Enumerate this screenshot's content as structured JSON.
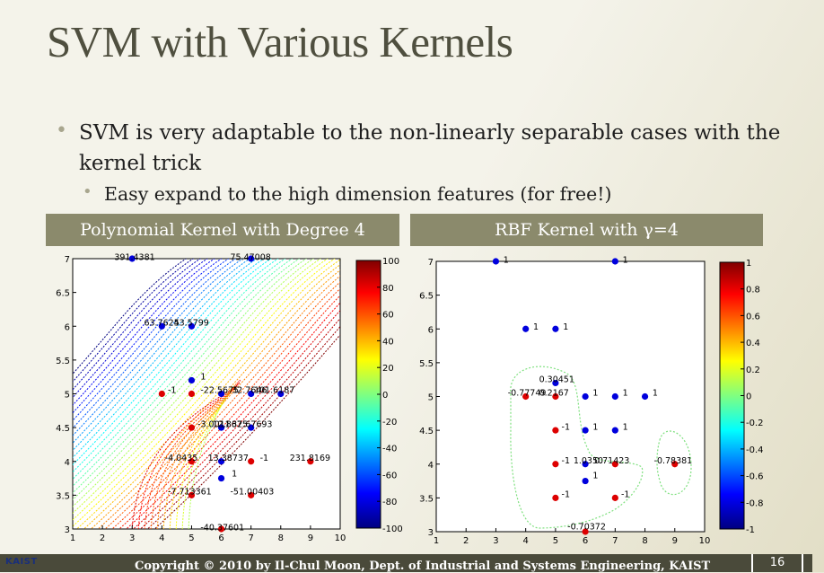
{
  "slide": {
    "title": "SVM with Various Kernels",
    "bullet1": "SVM is very adaptable to the non-linearly separable cases with the kernel trick",
    "bullet2": "Easy expand to the high dimension features (for free!)",
    "panel_left": "Polynomial Kernel with Degree 4",
    "panel_right": "RBF Kernel with γ=4",
    "footer": "Copyright © 2010 by Il-Chul Moon, Dept. of Industrial and Systems Engineering, KAIST",
    "page_number": "16",
    "logo": "KAIST"
  },
  "colors": {
    "title": "#4f4f3f",
    "panel_header": "#8b8a6c",
    "footer_bar": "#4a4a3a",
    "positive_point": "#0000dd",
    "negative_point": "#dd0000"
  },
  "chart_data": [
    {
      "type": "scatter",
      "name": "polynomial",
      "xlim": [
        1,
        10
      ],
      "ylim": [
        3,
        7
      ],
      "xticks": [
        "1",
        "2",
        "3",
        "4",
        "5",
        "6",
        "7",
        "8",
        "9",
        "10"
      ],
      "yticks": [
        "3",
        "3.5",
        "4",
        "4.5",
        "5",
        "5.5",
        "6",
        "6.5",
        "7"
      ],
      "colorbar": {
        "min": -100,
        "max": 100,
        "ticks": [
          "100",
          "80",
          "60",
          "40",
          "20",
          "0",
          "-20",
          "-40",
          "-60",
          "-80",
          "-100"
        ]
      },
      "points_blue": [
        [
          3,
          7
        ],
        [
          7,
          7
        ],
        [
          4,
          6
        ],
        [
          5,
          6
        ],
        [
          5,
          5.2
        ],
        [
          6,
          5
        ],
        [
          7,
          5
        ],
        [
          8,
          5
        ],
        [
          6,
          4.5
        ],
        [
          7,
          4.5
        ],
        [
          6,
          4
        ],
        [
          6,
          3.75
        ]
      ],
      "points_red": [
        [
          4,
          5
        ],
        [
          5,
          5
        ],
        [
          5,
          4.5
        ],
        [
          5,
          4
        ],
        [
          7,
          4
        ],
        [
          9,
          4
        ],
        [
          5,
          3.5
        ],
        [
          7,
          3.5
        ],
        [
          6,
          3
        ]
      ],
      "annotations": [
        {
          "x": 2.4,
          "y": 7.02,
          "text": "391.4381"
        },
        {
          "x": 6.3,
          "y": 7.02,
          "text": "75.47008"
        },
        {
          "x": 3.4,
          "y": 6.05,
          "text": "63.7625"
        },
        {
          "x": 4.4,
          "y": 6.05,
          "text": "43.5799"
        },
        {
          "x": 5.3,
          "y": 5.25,
          "text": "1"
        },
        {
          "x": 4.2,
          "y": 5.05,
          "text": "-1"
        },
        {
          "x": 5.3,
          "y": 5.05,
          "text": "-22.5675"
        },
        {
          "x": 6.35,
          "y": 5.05,
          "text": "32.7646"
        },
        {
          "x": 7.1,
          "y": 5.05,
          "text": "101.6187"
        },
        {
          "x": 5.2,
          "y": 4.55,
          "text": "-3.0011"
        },
        {
          "x": 5.7,
          "y": 4.55,
          "text": "12.8675"
        },
        {
          "x": 6.35,
          "y": 4.55,
          "text": "32.67693"
        },
        {
          "x": 4.1,
          "y": 4.05,
          "text": "-4.0435"
        },
        {
          "x": 5.55,
          "y": 4.05,
          "text": "13.38737"
        },
        {
          "x": 7.3,
          "y": 4.05,
          "text": "-1"
        },
        {
          "x": 8.3,
          "y": 4.05,
          "text": "231.8169"
        },
        {
          "x": 6.35,
          "y": 3.82,
          "text": "1"
        },
        {
          "x": 4.2,
          "y": 3.55,
          "text": "-7.713361"
        },
        {
          "x": 6.3,
          "y": 3.55,
          "text": "-51.00403"
        },
        {
          "x": 5.3,
          "y": 3.02,
          "text": "-40.37601"
        }
      ]
    },
    {
      "type": "scatter",
      "name": "rbf",
      "xlim": [
        1,
        10
      ],
      "ylim": [
        3,
        7
      ],
      "xticks": [
        "1",
        "2",
        "3",
        "4",
        "5",
        "6",
        "7",
        "8",
        "9",
        "10"
      ],
      "yticks": [
        "3",
        "3.5",
        "4",
        "4.5",
        "5",
        "5.5",
        "6",
        "6.5",
        "7"
      ],
      "colorbar": {
        "min": -1,
        "max": 1,
        "ticks": [
          "1",
          "0.8",
          "0.6",
          "0.4",
          "0.2",
          "0",
          "-0.2",
          "-0.4",
          "-0.6",
          "-0.8",
          "-1"
        ]
      },
      "points_blue": [
        [
          3,
          7
        ],
        [
          7,
          7
        ],
        [
          4,
          6
        ],
        [
          5,
          6
        ],
        [
          5,
          5.2
        ],
        [
          6,
          5
        ],
        [
          7,
          5
        ],
        [
          8,
          5
        ],
        [
          6,
          4.5
        ],
        [
          7,
          4.5
        ],
        [
          6,
          4
        ],
        [
          6,
          3.75
        ]
      ],
      "points_red": [
        [
          4,
          5
        ],
        [
          5,
          5
        ],
        [
          5,
          4.5
        ],
        [
          5,
          4
        ],
        [
          7,
          4
        ],
        [
          9,
          4
        ],
        [
          5,
          3.5
        ],
        [
          7,
          3.5
        ],
        [
          6,
          3
        ]
      ],
      "annotations": [
        {
          "x": 3.25,
          "y": 7.02,
          "text": "1"
        },
        {
          "x": 7.25,
          "y": 7.02,
          "text": "1"
        },
        {
          "x": 4.25,
          "y": 6.03,
          "text": "1"
        },
        {
          "x": 5.25,
          "y": 6.03,
          "text": "1"
        },
        {
          "x": 4.45,
          "y": 5.25,
          "text": "0.30451"
        },
        {
          "x": 3.4,
          "y": 5.05,
          "text": "-0.77749"
        },
        {
          "x": 4.45,
          "y": 5.05,
          "text": "0.2167"
        },
        {
          "x": 6.25,
          "y": 5.05,
          "text": "1"
        },
        {
          "x": 7.25,
          "y": 5.05,
          "text": "1"
        },
        {
          "x": 8.25,
          "y": 5.05,
          "text": "1"
        },
        {
          "x": 5.2,
          "y": 4.55,
          "text": "-1"
        },
        {
          "x": 6.25,
          "y": 4.55,
          "text": "1"
        },
        {
          "x": 7.25,
          "y": 4.55,
          "text": "1"
        },
        {
          "x": 5.2,
          "y": 4.05,
          "text": "-1"
        },
        {
          "x": 5.6,
          "y": 4.05,
          "text": "1.0350"
        },
        {
          "x": 6.3,
          "y": 4.05,
          "text": "0.71423"
        },
        {
          "x": 8.3,
          "y": 4.05,
          "text": "-0.78381"
        },
        {
          "x": 6.25,
          "y": 3.83,
          "text": "1"
        },
        {
          "x": 5.2,
          "y": 3.55,
          "text": "-1"
        },
        {
          "x": 7.2,
          "y": 3.55,
          "text": "-1"
        },
        {
          "x": 5.4,
          "y": 3.07,
          "text": "-0.70372"
        }
      ]
    }
  ]
}
